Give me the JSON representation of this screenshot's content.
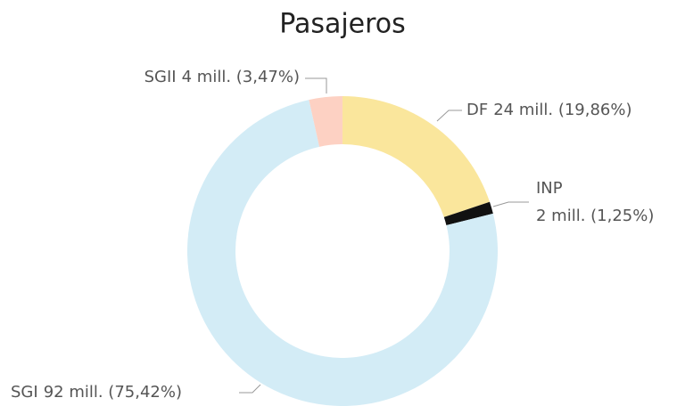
{
  "chart_data": {
    "type": "donut",
    "title": "Pasajeros",
    "categories": [
      "DF",
      "INP",
      "SGI",
      "SGII"
    ],
    "values": [
      19.86,
      1.25,
      75.42,
      3.47
    ],
    "value_labels": [
      "24 mill. (19,86%)",
      "2 mill. (1,25%)",
      "92 mill. (75,42%)",
      "4 mill. (3,47%)"
    ],
    "colors": [
      "#fae69c",
      "#111111",
      "#d3ecf6",
      "#fdd1c3"
    ]
  }
}
